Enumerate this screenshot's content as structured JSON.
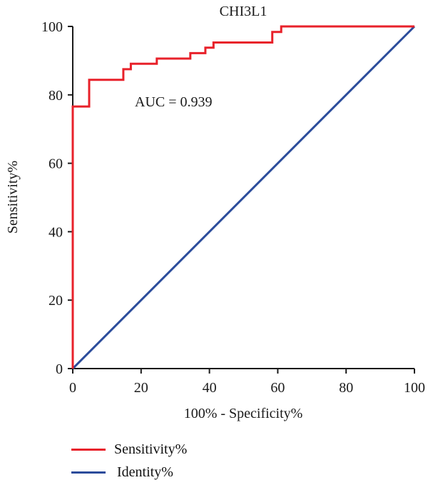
{
  "chart_data": {
    "type": "line",
    "title": "CHI3L1",
    "xlabel": "100% - Specificity%",
    "ylabel": "Sensitivity%",
    "xlim": [
      0,
      100
    ],
    "ylim": [
      0,
      100
    ],
    "xticks": [
      "0",
      "20",
      "40",
      "60",
      "80",
      "100"
    ],
    "yticks": [
      "0",
      "20",
      "40",
      "60",
      "80",
      "100"
    ],
    "annotation": "AUC = 0.939",
    "grid": false,
    "legend_position": "bottom-left",
    "series": [
      {
        "name": "Sensitivity%",
        "color": "#e8212a",
        "x": [
          0,
          0,
          4.8,
          4.8,
          14.8,
          14.8,
          17,
          17,
          24.6,
          24.6,
          34.4,
          34.4,
          38.8,
          38.8,
          41.2,
          41.2,
          58.4,
          58.4,
          61,
          61,
          100
        ],
        "y": [
          0,
          76.6,
          76.6,
          84.4,
          84.4,
          87.5,
          87.5,
          89.1,
          89.1,
          90.6,
          90.6,
          92.2,
          92.2,
          93.8,
          93.8,
          95.3,
          95.3,
          98.4,
          98.4,
          100,
          100
        ]
      },
      {
        "name": "Identity%",
        "color": "#2b4c9b",
        "x": [
          0,
          100
        ],
        "y": [
          0,
          100
        ]
      }
    ]
  }
}
